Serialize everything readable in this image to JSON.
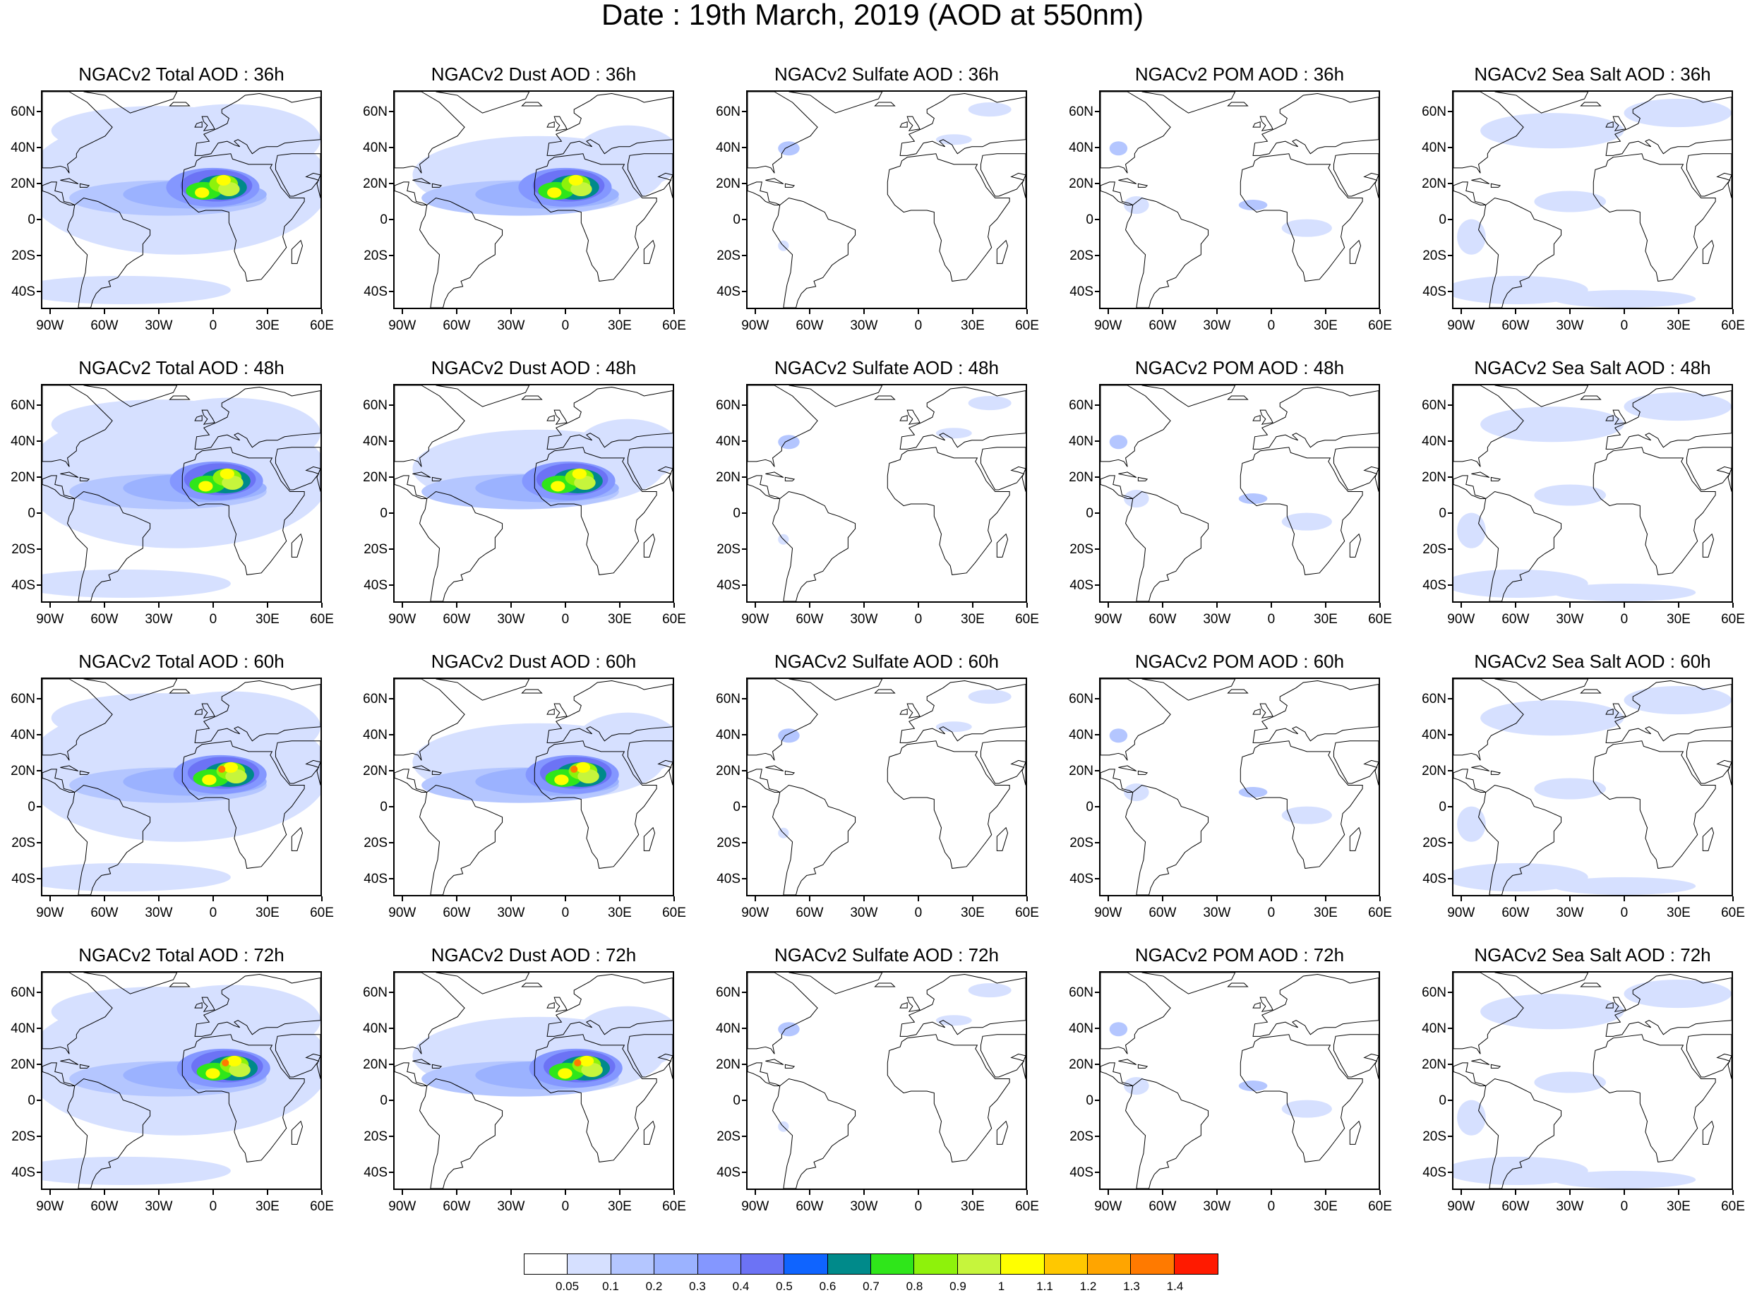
{
  "main_title": "Date : 19th March, 2019 (AOD at 550nm)",
  "lat_labels": [
    "60N",
    "40N",
    "20N",
    "0",
    "20S",
    "40S"
  ],
  "lon_labels": [
    "90W",
    "60W",
    "30W",
    "0",
    "30E",
    "60E"
  ],
  "panels": [
    {
      "title": "NGACv2 Total AOD : 36h",
      "species": "total",
      "lead": 36
    },
    {
      "title": "NGACv2 Dust AOD : 36h",
      "species": "dust",
      "lead": 36
    },
    {
      "title": "NGACv2 Sulfate AOD : 36h",
      "species": "sulfate",
      "lead": 36
    },
    {
      "title": "NGACv2 POM AOD : 36h",
      "species": "pom",
      "lead": 36
    },
    {
      "title": "NGACv2 Sea Salt AOD : 36h",
      "species": "seasalt",
      "lead": 36
    },
    {
      "title": "NGACv2 Total AOD : 48h",
      "species": "total",
      "lead": 48
    },
    {
      "title": "NGACv2 Dust AOD : 48h",
      "species": "dust",
      "lead": 48
    },
    {
      "title": "NGACv2 Sulfate AOD : 48h",
      "species": "sulfate",
      "lead": 48
    },
    {
      "title": "NGACv2 POM AOD : 48h",
      "species": "pom",
      "lead": 48
    },
    {
      "title": "NGACv2 Sea Salt AOD : 48h",
      "species": "seasalt",
      "lead": 48
    },
    {
      "title": "NGACv2 Total AOD : 60h",
      "species": "total",
      "lead": 60
    },
    {
      "title": "NGACv2 Dust AOD : 60h",
      "species": "dust",
      "lead": 60
    },
    {
      "title": "NGACv2 Sulfate AOD : 60h",
      "species": "sulfate",
      "lead": 60
    },
    {
      "title": "NGACv2 POM AOD : 60h",
      "species": "pom",
      "lead": 60
    },
    {
      "title": "NGACv2 Sea Salt AOD : 60h",
      "species": "seasalt",
      "lead": 60
    },
    {
      "title": "NGACv2 Total AOD : 72h",
      "species": "total",
      "lead": 72
    },
    {
      "title": "NGACv2 Dust AOD : 72h",
      "species": "dust",
      "lead": 72
    },
    {
      "title": "NGACv2 Sulfate AOD : 72h",
      "species": "sulfate",
      "lead": 72
    },
    {
      "title": "NGACv2 POM AOD : 72h",
      "species": "pom",
      "lead": 72
    },
    {
      "title": "NGACv2 Sea Salt  AOD : 72h",
      "species": "seasalt",
      "lead": 72
    }
  ],
  "colorbar": {
    "labels": [
      "0.05",
      "0.1",
      "0.2",
      "0.3",
      "0.4",
      "0.5",
      "0.6",
      "0.7",
      "0.8",
      "0.9",
      "1",
      "1.1",
      "1.2",
      "1.3",
      "1.4"
    ],
    "colors": [
      "#ffffff",
      "#d6e0ff",
      "#b4c6ff",
      "#9bb2ff",
      "#8497ff",
      "#6c73f5",
      "#0f64ff",
      "#008a8a",
      "#2fe61a",
      "#8ef20b",
      "#c6f53c",
      "#ffff00",
      "#ffc800",
      "#ffa500",
      "#ff7a00",
      "#ff1a00"
    ]
  }
}
